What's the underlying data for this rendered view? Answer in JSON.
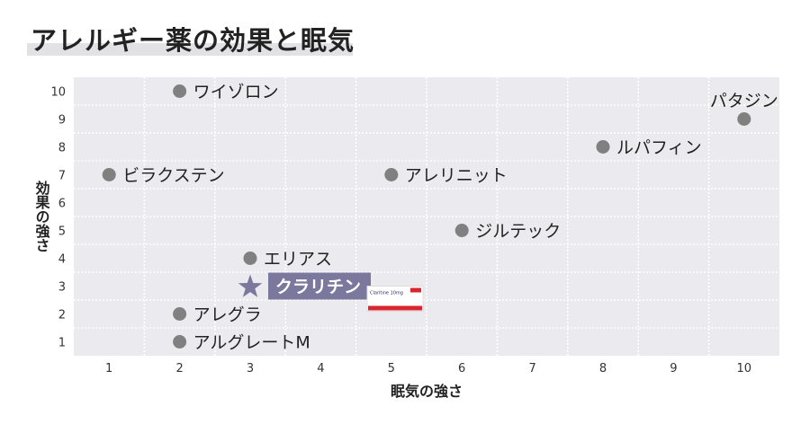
{
  "title": "アレルギー薬の効果と眠気",
  "chart_data": {
    "type": "scatter",
    "title": "アレルギー薬の効果と眠気",
    "xlabel": "眠気の強さ",
    "ylabel": "効果の強さ",
    "xlim": [
      0.5,
      10.5
    ],
    "ylim": [
      0.5,
      10.5
    ],
    "xticks": [
      "1",
      "2",
      "3",
      "4",
      "5",
      "6",
      "7",
      "8",
      "9",
      "10"
    ],
    "yticks": [
      "1",
      "2",
      "3",
      "4",
      "5",
      "6",
      "7",
      "8",
      "9",
      "10"
    ],
    "grid": true,
    "points": [
      {
        "label": "ワイゾロン",
        "x": 2,
        "y": 10
      },
      {
        "label": "パタジン",
        "x": 10,
        "y": 9
      },
      {
        "label": "ルパフィン",
        "x": 8,
        "y": 8
      },
      {
        "label": "ビラクステン",
        "x": 1,
        "y": 7
      },
      {
        "label": "アレリニット",
        "x": 5,
        "y": 7
      },
      {
        "label": "ジルテック",
        "x": 6,
        "y": 5
      },
      {
        "label": "エリアス",
        "x": 3,
        "y": 4
      },
      {
        "label": "アレグラ",
        "x": 2,
        "y": 2
      },
      {
        "label": "アルグレートM",
        "x": 2,
        "y": 1
      }
    ],
    "highlight": {
      "label": "クラリチン",
      "x": 3,
      "y": 3,
      "marker": "star"
    },
    "product_image_text": "Claritine 10mg",
    "colors": {
      "point": "#808080",
      "highlight": "#7b789e",
      "plot_bg": "#ebebef",
      "grid": "#ffffff"
    }
  }
}
